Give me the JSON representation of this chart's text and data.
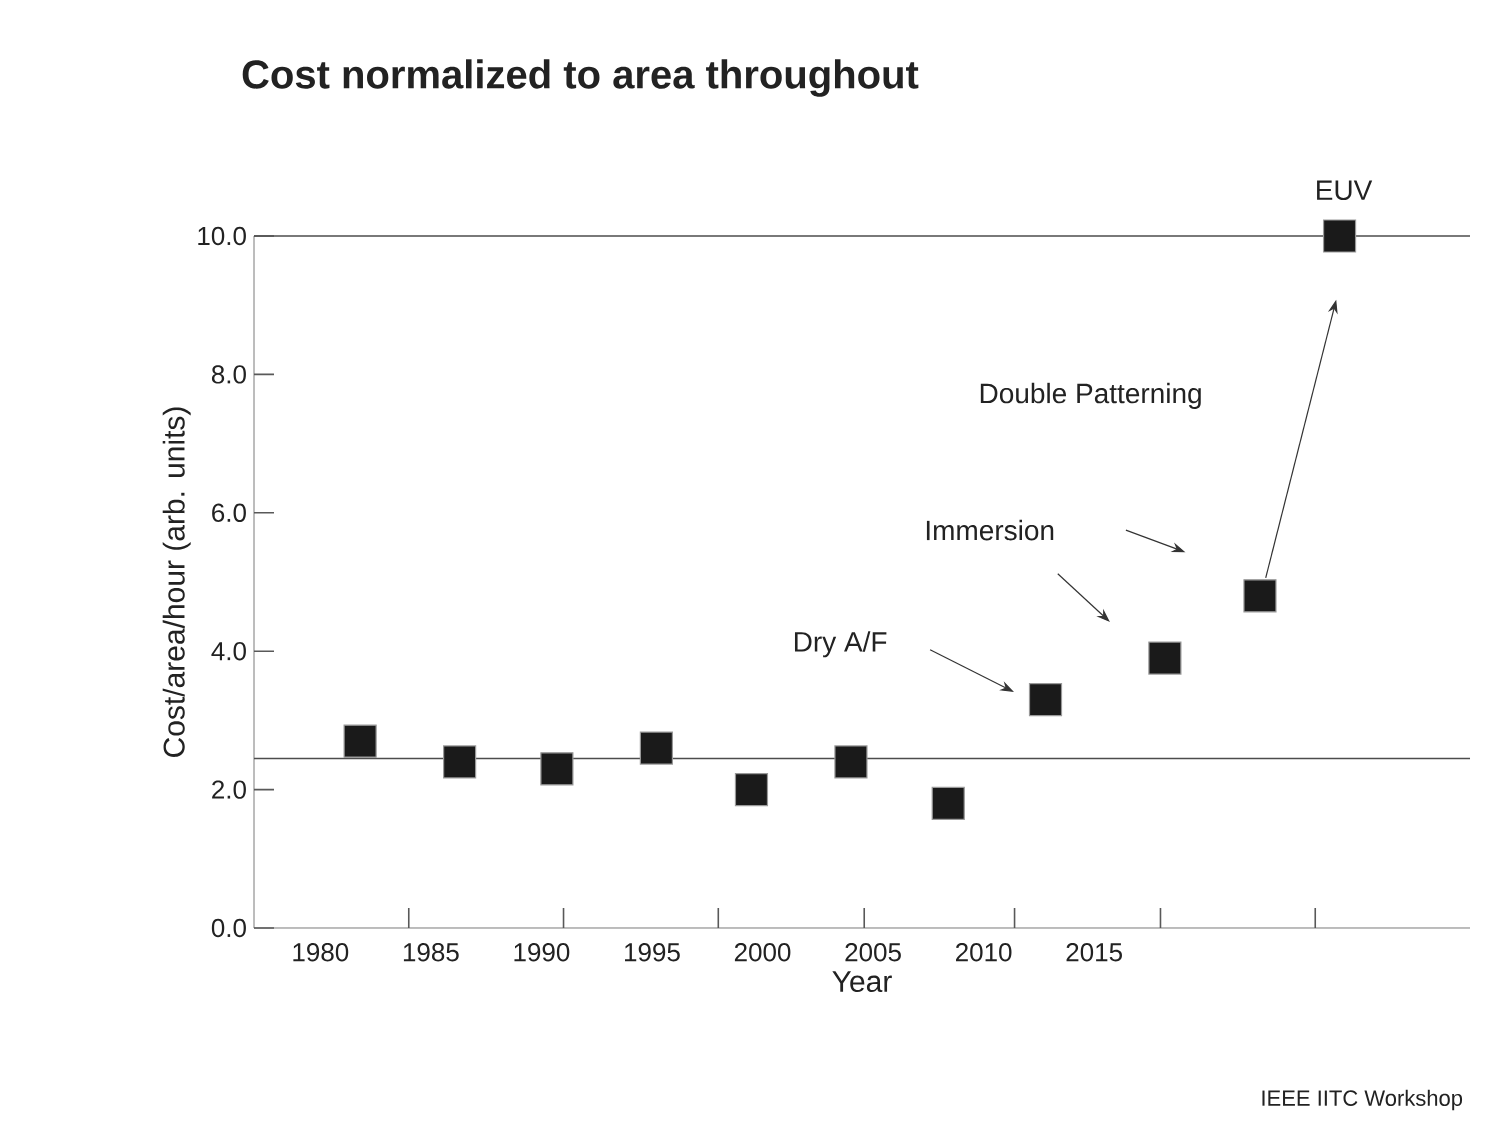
{
  "chart_data": {
    "type": "scatter",
    "title": "Cost normalized to area throughout",
    "xlabel": "Year",
    "ylabel": "Cost/area/hour (arb. units)",
    "x": [
      1981.8,
      1986.3,
      1990.7,
      1995.2,
      1999.5,
      2004.0,
      2008.4,
      2012.8,
      2018.2,
      2022.5,
      2026.1
    ],
    "values": [
      2.7,
      2.4,
      2.3,
      2.6,
      2.0,
      2.4,
      1.8,
      3.3,
      3.9,
      4.8,
      10.0
    ],
    "color": "#1a1a1a",
    "marker": "square",
    "xlim": [
      1977,
      2032
    ],
    "ylim": [
      0,
      10
    ],
    "xticks": [
      1980,
      1985,
      1990,
      1995,
      2000,
      2005,
      2010,
      2015,
      {
        "value": 1984,
        "label": null
      },
      {
        "value": 1991,
        "label": null
      },
      {
        "value": 1998,
        "label": null
      },
      {
        "value": 2004.6,
        "label": null
      },
      {
        "value": 2011.4,
        "label": null
      },
      {
        "value": 2018,
        "label": null
      },
      {
        "value": 2025,
        "label": null
      }
    ],
    "yticks": [
      {
        "value": 0,
        "label": "0.0"
      },
      {
        "value": 2,
        "label": "2.0"
      },
      {
        "value": 4,
        "label": "4.0"
      },
      {
        "value": 6,
        "label": "6.0"
      },
      {
        "value": 8,
        "label": "8.0"
      },
      {
        "value": 10,
        "label": "10.0"
      }
    ],
    "ref_lines": [
      {
        "axis": "y",
        "value": 2.45,
        "color": "#4d4d4d"
      },
      {
        "axis": "y",
        "value": 10,
        "color": "#4d4d4d"
      }
    ],
    "grid": false,
    "annotations": [
      "Dry A/F",
      "Immersion",
      "Double Patterning",
      "EUV",
      "IEEE IITC Workshop"
    ]
  }
}
